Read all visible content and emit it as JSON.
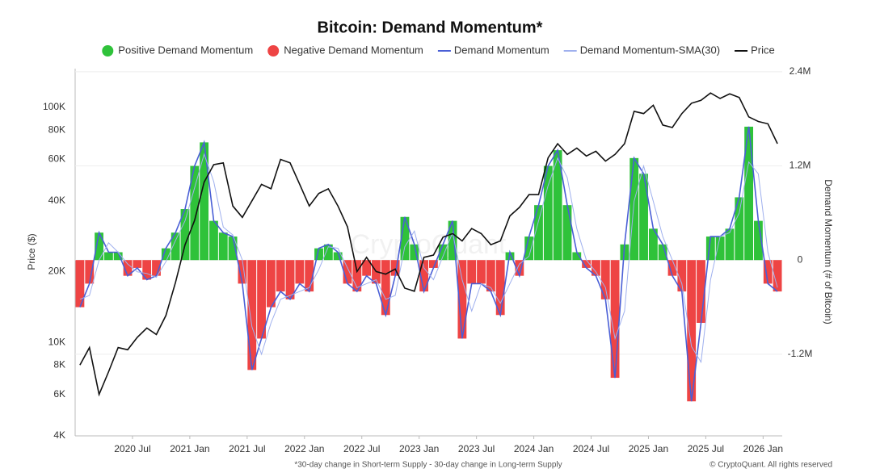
{
  "chart_data": {
    "type": "bar",
    "title": "Bitcoin: Demand Momentum*",
    "y_label": "Price ($)",
    "y2_label": "Demand Momentum (# of Bitcoin)",
    "footnote": "*30-day change in Short-term Supply - 30-day change in Long-term Supply",
    "credit": "© CryptoQuant. All rights reserved",
    "watermark": "CryptoQuant",
    "log_y": true,
    "grid": true,
    "legend": "top",
    "x": [
      "2020-01",
      "2020-02",
      "2020-03",
      "2020-04",
      "2020-05",
      "2020-06",
      "2020-07",
      "2020-08",
      "2020-09",
      "2020-10",
      "2020-11",
      "2020-12",
      "2021-01",
      "2021-02",
      "2021-03",
      "2021-04",
      "2021-05",
      "2021-06",
      "2021-07",
      "2021-08",
      "2021-09",
      "2021-10",
      "2021-11",
      "2021-12",
      "2022-01",
      "2022-02",
      "2022-03",
      "2022-04",
      "2022-05",
      "2022-06",
      "2022-07",
      "2022-08",
      "2022-09",
      "2022-10",
      "2022-11",
      "2022-12",
      "2023-01",
      "2023-02",
      "2023-03",
      "2023-04",
      "2023-05",
      "2023-06",
      "2023-07",
      "2023-08",
      "2023-09",
      "2023-10",
      "2023-11",
      "2023-12",
      "2024-01",
      "2024-02",
      "2024-03",
      "2024-04",
      "2024-05",
      "2024-06",
      "2024-07",
      "2024-08",
      "2024-09",
      "2024-10",
      "2024-11",
      "2024-12",
      "2025-01",
      "2025-02",
      "2025-03",
      "2025-04",
      "2025-05",
      "2025-06",
      "2025-07",
      "2025-08",
      "2025-09",
      "2025-10",
      "2025-11",
      "2025-12",
      "2026-01",
      "2026-02"
    ],
    "xticks": [
      {
        "value": "2020-07",
        "label": "2020 Jul"
      },
      {
        "value": "2021-01",
        "label": "2021 Jan"
      },
      {
        "value": "2021-07",
        "label": "2021 Jul"
      },
      {
        "value": "2022-01",
        "label": "2022 Jan"
      },
      {
        "value": "2022-07",
        "label": "2022 Jul"
      },
      {
        "value": "2023-01",
        "label": "2023 Jan"
      },
      {
        "value": "2023-07",
        "label": "2023 Jul"
      },
      {
        "value": "2024-01",
        "label": "2024 Jan"
      },
      {
        "value": "2024-07",
        "label": "2024 Jul"
      },
      {
        "value": "2025-01",
        "label": "2025 Jan"
      },
      {
        "value": "2025-07",
        "label": "2025 Jul"
      },
      {
        "value": "2026-01",
        "label": "2026 Jan"
      }
    ],
    "ylim": [
      4000,
      146000
    ],
    "yticks": [
      {
        "value": 4000,
        "label": "4K"
      },
      {
        "value": 6000,
        "label": "6K"
      },
      {
        "value": 8000,
        "label": "8K"
      },
      {
        "value": 10000,
        "label": "10K"
      },
      {
        "value": 20000,
        "label": "20K"
      },
      {
        "value": 40000,
        "label": "40K"
      },
      {
        "value": 60000,
        "label": "60K"
      },
      {
        "value": 80000,
        "label": "80K"
      },
      {
        "value": 100000,
        "label": "100K"
      }
    ],
    "y2lim": [
      -2240000,
      2440000
    ],
    "y2ticks": [
      {
        "value": 2400000,
        "label": "2.4M"
      },
      {
        "value": 1200000,
        "label": "1.2M"
      },
      0,
      {
        "value": -1200000,
        "label": "-1.2M"
      }
    ],
    "series": [
      {
        "name": "Positive Demand Momentum",
        "kind": "bar",
        "axis": "y2",
        "color": "#2fc23a",
        "values": [
          null,
          null,
          350000,
          100000,
          100000,
          null,
          null,
          null,
          null,
          150000,
          350000,
          650000,
          1200000,
          1500000,
          500000,
          350000,
          300000,
          null,
          null,
          null,
          null,
          null,
          null,
          null,
          null,
          150000,
          200000,
          100000,
          null,
          null,
          null,
          null,
          null,
          null,
          550000,
          200000,
          null,
          null,
          200000,
          500000,
          null,
          null,
          null,
          null,
          null,
          100000,
          null,
          300000,
          700000,
          1200000,
          1400000,
          700000,
          100000,
          null,
          null,
          null,
          null,
          200000,
          1300000,
          1100000,
          400000,
          200000,
          null,
          null,
          null,
          null,
          300000,
          300000,
          400000,
          800000,
          1700000,
          500000,
          null,
          null
        ]
      },
      {
        "name": "Negative Demand Momentum",
        "kind": "bar",
        "axis": "y2",
        "color": "#ee4444",
        "values": [
          -600000,
          -300000,
          null,
          null,
          null,
          -200000,
          -100000,
          -250000,
          -200000,
          null,
          null,
          null,
          null,
          null,
          null,
          null,
          null,
          -300000,
          -1400000,
          -1000000,
          -600000,
          -400000,
          -500000,
          -300000,
          -400000,
          null,
          null,
          null,
          -300000,
          -400000,
          -200000,
          -300000,
          -700000,
          -200000,
          null,
          null,
          -400000,
          -100000,
          null,
          null,
          -1000000,
          -300000,
          -300000,
          -400000,
          -700000,
          null,
          -200000,
          null,
          null,
          null,
          null,
          null,
          null,
          -100000,
          -200000,
          -500000,
          -1500000,
          null,
          null,
          null,
          null,
          null,
          -200000,
          -400000,
          -1800000,
          -800000,
          null,
          null,
          null,
          null,
          null,
          null,
          -300000,
          -400000
        ]
      },
      {
        "name": "Demand Momentum",
        "kind": "line",
        "axis": "y2",
        "color": "#4a5fd6",
        "values": [
          -600000,
          -300000,
          350000,
          100000,
          100000,
          -200000,
          -100000,
          -250000,
          -200000,
          150000,
          350000,
          650000,
          1200000,
          1500000,
          500000,
          350000,
          300000,
          -300000,
          -1400000,
          -1000000,
          -600000,
          -400000,
          -500000,
          -300000,
          -400000,
          150000,
          200000,
          100000,
          -300000,
          -400000,
          -200000,
          -300000,
          -700000,
          -200000,
          550000,
          200000,
          -400000,
          -100000,
          200000,
          500000,
          -1000000,
          -300000,
          -300000,
          -400000,
          -700000,
          100000,
          -200000,
          300000,
          700000,
          1200000,
          1400000,
          700000,
          100000,
          -100000,
          -200000,
          -500000,
          -1500000,
          200000,
          1300000,
          1100000,
          400000,
          200000,
          -200000,
          -400000,
          -1800000,
          -800000,
          300000,
          300000,
          400000,
          800000,
          1700000,
          500000,
          -300000,
          -400000
        ]
      },
      {
        "name": "Demand Momentum-SMA(30)",
        "kind": "line",
        "axis": "y2",
        "color": "#9fb0ee",
        "values": [
          -500000,
          -450000,
          0,
          220000,
          100000,
          -50000,
          -150000,
          -170000,
          -220000,
          -20000,
          250000,
          500000,
          920000,
          1350000,
          1000000,
          420000,
          320000,
          0,
          -850000,
          -1200000,
          -800000,
          -500000,
          -450000,
          -400000,
          -350000,
          -120000,
          170000,
          150000,
          -100000,
          -350000,
          -300000,
          -250000,
          -500000,
          -450000,
          170000,
          370000,
          -100000,
          -250000,
          50000,
          350000,
          -250000,
          -650000,
          -300000,
          -350000,
          -550000,
          -300000,
          -50000,
          50000,
          500000,
          950000,
          1300000,
          1050000,
          400000,
          0,
          -150000,
          -350000,
          -1000000,
          -650000,
          750000,
          1200000,
          750000,
          300000,
          0,
          -300000,
          -1100000,
          -1300000,
          -250000,
          300000,
          350000,
          600000,
          1250000,
          1100000,
          100000,
          -350000
        ]
      },
      {
        "name": "Price",
        "kind": "line",
        "axis": "y",
        "color": "#111111",
        "values": [
          8000,
          9500,
          6000,
          7500,
          9500,
          9300,
          10500,
          11500,
          10800,
          13000,
          18000,
          26000,
          33000,
          48000,
          57000,
          58000,
          38000,
          34000,
          40000,
          47000,
          45000,
          60000,
          58000,
          47000,
          38000,
          43000,
          45000,
          38000,
          31000,
          20000,
          23000,
          20000,
          19500,
          20500,
          17000,
          16500,
          23000,
          23500,
          28000,
          29000,
          27000,
          30500,
          29000,
          26000,
          27000,
          34500,
          37500,
          42500,
          42500,
          61000,
          70000,
          63000,
          67000,
          62000,
          65000,
          59000,
          63000,
          70000,
          96000,
          94000,
          102000,
          84000,
          82000,
          94000,
          104000,
          107000,
          115000,
          109000,
          114000,
          110000,
          91000,
          87000,
          85000,
          70000
        ]
      }
    ]
  }
}
